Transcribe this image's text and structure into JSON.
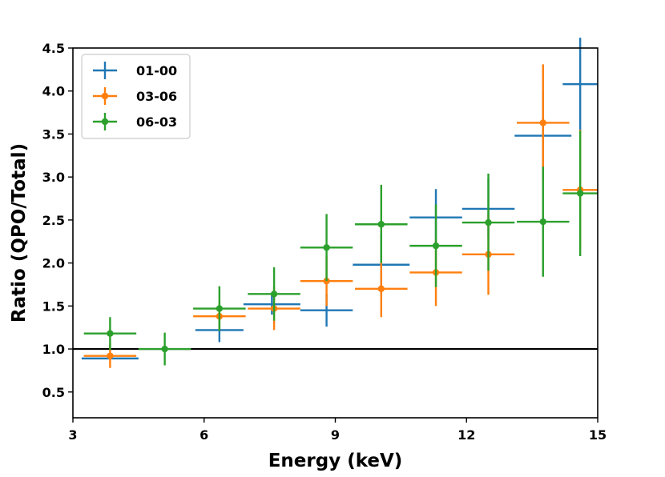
{
  "chart_data": {
    "type": "scatter",
    "title": "",
    "xlabel": "Energy (keV)",
    "ylabel": "Ratio (QPO/Total)",
    "xlim": [
      3,
      15
    ],
    "ylim": [
      0.2,
      4.5
    ],
    "xticks": [
      3,
      6,
      9,
      12,
      15
    ],
    "yticks": [
      0.5,
      1.0,
      1.5,
      2.0,
      2.5,
      3.0,
      3.5,
      4.0,
      4.5
    ],
    "xtick_labels": [
      "3",
      "6",
      "9",
      "12",
      "15"
    ],
    "ytick_labels": [
      "0.5",
      "1.0",
      "1.5",
      "2.0",
      "2.5",
      "3.0",
      "3.5",
      "4.0",
      "4.5"
    ],
    "reference_line": {
      "y": 1.0,
      "color": "#000000"
    },
    "legend_position": "top-left",
    "series": [
      {
        "name": "01-00",
        "color": "#1f77b4",
        "marker": false,
        "points": [
          {
            "x": 3.85,
            "xerr": 0.65,
            "y": 0.89,
            "ylow": 0.89,
            "yhigh": 0.89
          },
          {
            "x": 6.35,
            "xerr": 0.55,
            "y": 1.22,
            "ylow": 1.08,
            "yhigh": 1.36
          },
          {
            "x": 7.55,
            "xerr": 0.65,
            "y": 1.52,
            "ylow": 1.4,
            "yhigh": 1.64
          },
          {
            "x": 8.8,
            "xerr": 0.6,
            "y": 1.45,
            "ylow": 1.26,
            "yhigh": 1.64
          },
          {
            "x": 10.05,
            "xerr": 0.65,
            "y": 1.98,
            "ylow": 1.62,
            "yhigh": 2.34
          },
          {
            "x": 11.3,
            "xerr": 0.6,
            "y": 2.53,
            "ylow": 2.2,
            "yhigh": 2.86
          },
          {
            "x": 12.5,
            "xerr": 0.6,
            "y": 2.63,
            "ylow": 2.28,
            "yhigh": 2.98
          },
          {
            "x": 13.75,
            "xerr": 0.65,
            "y": 3.48,
            "ylow": 2.95,
            "yhigh": 4.0
          },
          {
            "x": 14.6,
            "xerr": 0.4,
            "y": 4.08,
            "ylow": 3.5,
            "yhigh": 4.62
          }
        ]
      },
      {
        "name": "03-06",
        "color": "#ff7f0e",
        "marker": true,
        "points": [
          {
            "x": 3.85,
            "xerr": 0.6,
            "y": 0.92,
            "ylow": 0.78,
            "yhigh": 1.06
          },
          {
            "x": 6.35,
            "xerr": 0.6,
            "y": 1.38,
            "ylow": 1.22,
            "yhigh": 1.54
          },
          {
            "x": 7.6,
            "xerr": 0.6,
            "y": 1.47,
            "ylow": 1.22,
            "yhigh": 1.72
          },
          {
            "x": 8.8,
            "xerr": 0.6,
            "y": 1.79,
            "ylow": 1.5,
            "yhigh": 2.08
          },
          {
            "x": 10.05,
            "xerr": 0.6,
            "y": 1.7,
            "ylow": 1.37,
            "yhigh": 2.03
          },
          {
            "x": 11.3,
            "xerr": 0.6,
            "y": 1.89,
            "ylow": 1.5,
            "yhigh": 2.28
          },
          {
            "x": 12.5,
            "xerr": 0.6,
            "y": 2.1,
            "ylow": 1.63,
            "yhigh": 2.57
          },
          {
            "x": 13.75,
            "xerr": 0.6,
            "y": 3.63,
            "ylow": 2.95,
            "yhigh": 4.31
          },
          {
            "x": 14.6,
            "xerr": 0.4,
            "y": 2.85,
            "ylow": 2.15,
            "yhigh": 3.55
          }
        ]
      },
      {
        "name": "06-03",
        "color": "#2ca02c",
        "marker": true,
        "points": [
          {
            "x": 3.85,
            "xerr": 0.6,
            "y": 1.18,
            "ylow": 0.99,
            "yhigh": 1.37
          },
          {
            "x": 5.1,
            "xerr": 0.6,
            "y": 1.0,
            "ylow": 0.81,
            "yhigh": 1.19
          },
          {
            "x": 6.35,
            "xerr": 0.6,
            "y": 1.47,
            "ylow": 1.21,
            "yhigh": 1.73
          },
          {
            "x": 7.6,
            "xerr": 0.6,
            "y": 1.64,
            "ylow": 1.33,
            "yhigh": 1.95
          },
          {
            "x": 8.8,
            "xerr": 0.6,
            "y": 2.18,
            "ylow": 1.79,
            "yhigh": 2.57
          },
          {
            "x": 10.05,
            "xerr": 0.6,
            "y": 2.45,
            "ylow": 2.0,
            "yhigh": 2.91
          },
          {
            "x": 11.3,
            "xerr": 0.6,
            "y": 2.2,
            "ylow": 1.72,
            "yhigh": 2.68
          },
          {
            "x": 12.5,
            "xerr": 0.6,
            "y": 2.47,
            "ylow": 1.91,
            "yhigh": 3.04
          },
          {
            "x": 13.75,
            "xerr": 0.6,
            "y": 2.48,
            "ylow": 1.84,
            "yhigh": 3.12
          },
          {
            "x": 14.6,
            "xerr": 0.4,
            "y": 2.81,
            "ylow": 2.08,
            "yhigh": 3.54
          }
        ]
      }
    ]
  }
}
